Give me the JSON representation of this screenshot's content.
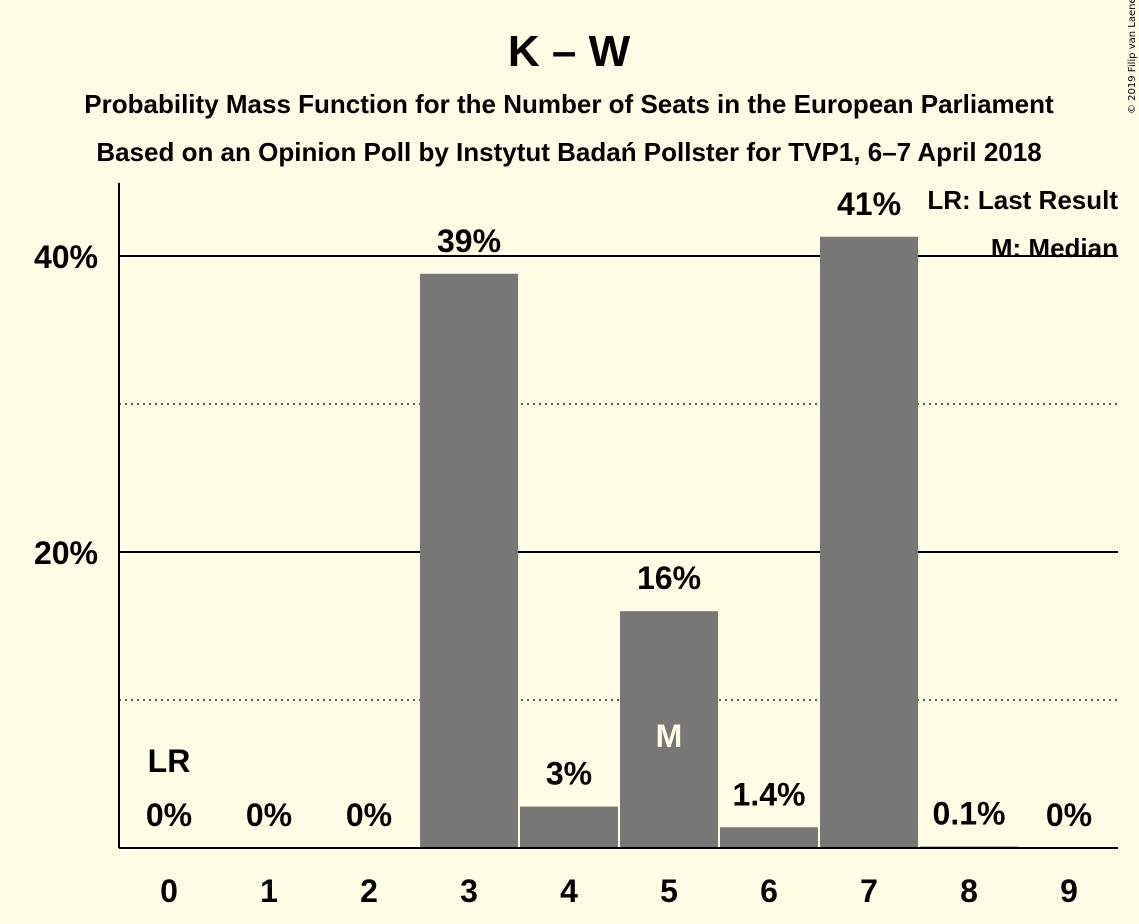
{
  "chart_data": {
    "type": "bar",
    "title": "K – W",
    "subtitle_line1": "Probability Mass Function for the Number of Seats in the European Parliament",
    "subtitle_line2": "Based on an Opinion Poll by Instytut Badań Pollster for TVP1, 6–7 April 2018",
    "categories": [
      "0",
      "1",
      "2",
      "3",
      "4",
      "5",
      "6",
      "7",
      "8",
      "9"
    ],
    "values": [
      0,
      0,
      0,
      38.8,
      2.8,
      16.0,
      1.4,
      41.3,
      0.1,
      0
    ],
    "value_labels": [
      "0%",
      "0%",
      "0%",
      "39%",
      "3%",
      "16%",
      "1.4%",
      "41%",
      "0.1%",
      "0%"
    ],
    "yticks": [
      20,
      40
    ],
    "ytick_labels": [
      "20%",
      "40%"
    ],
    "minor_gridlines": [
      10,
      30
    ],
    "ylim": [
      0,
      45
    ],
    "last_result_category": "0",
    "last_result_marker": "LR",
    "median_category": "5",
    "median_marker": "M",
    "legend": {
      "last_result": "LR: Last Result",
      "median": "M: Median",
      "position": "top-right"
    },
    "copyright": "© 2019 Filip van Laenen",
    "bar_color": "#777777",
    "background_color": "#fffde5"
  }
}
